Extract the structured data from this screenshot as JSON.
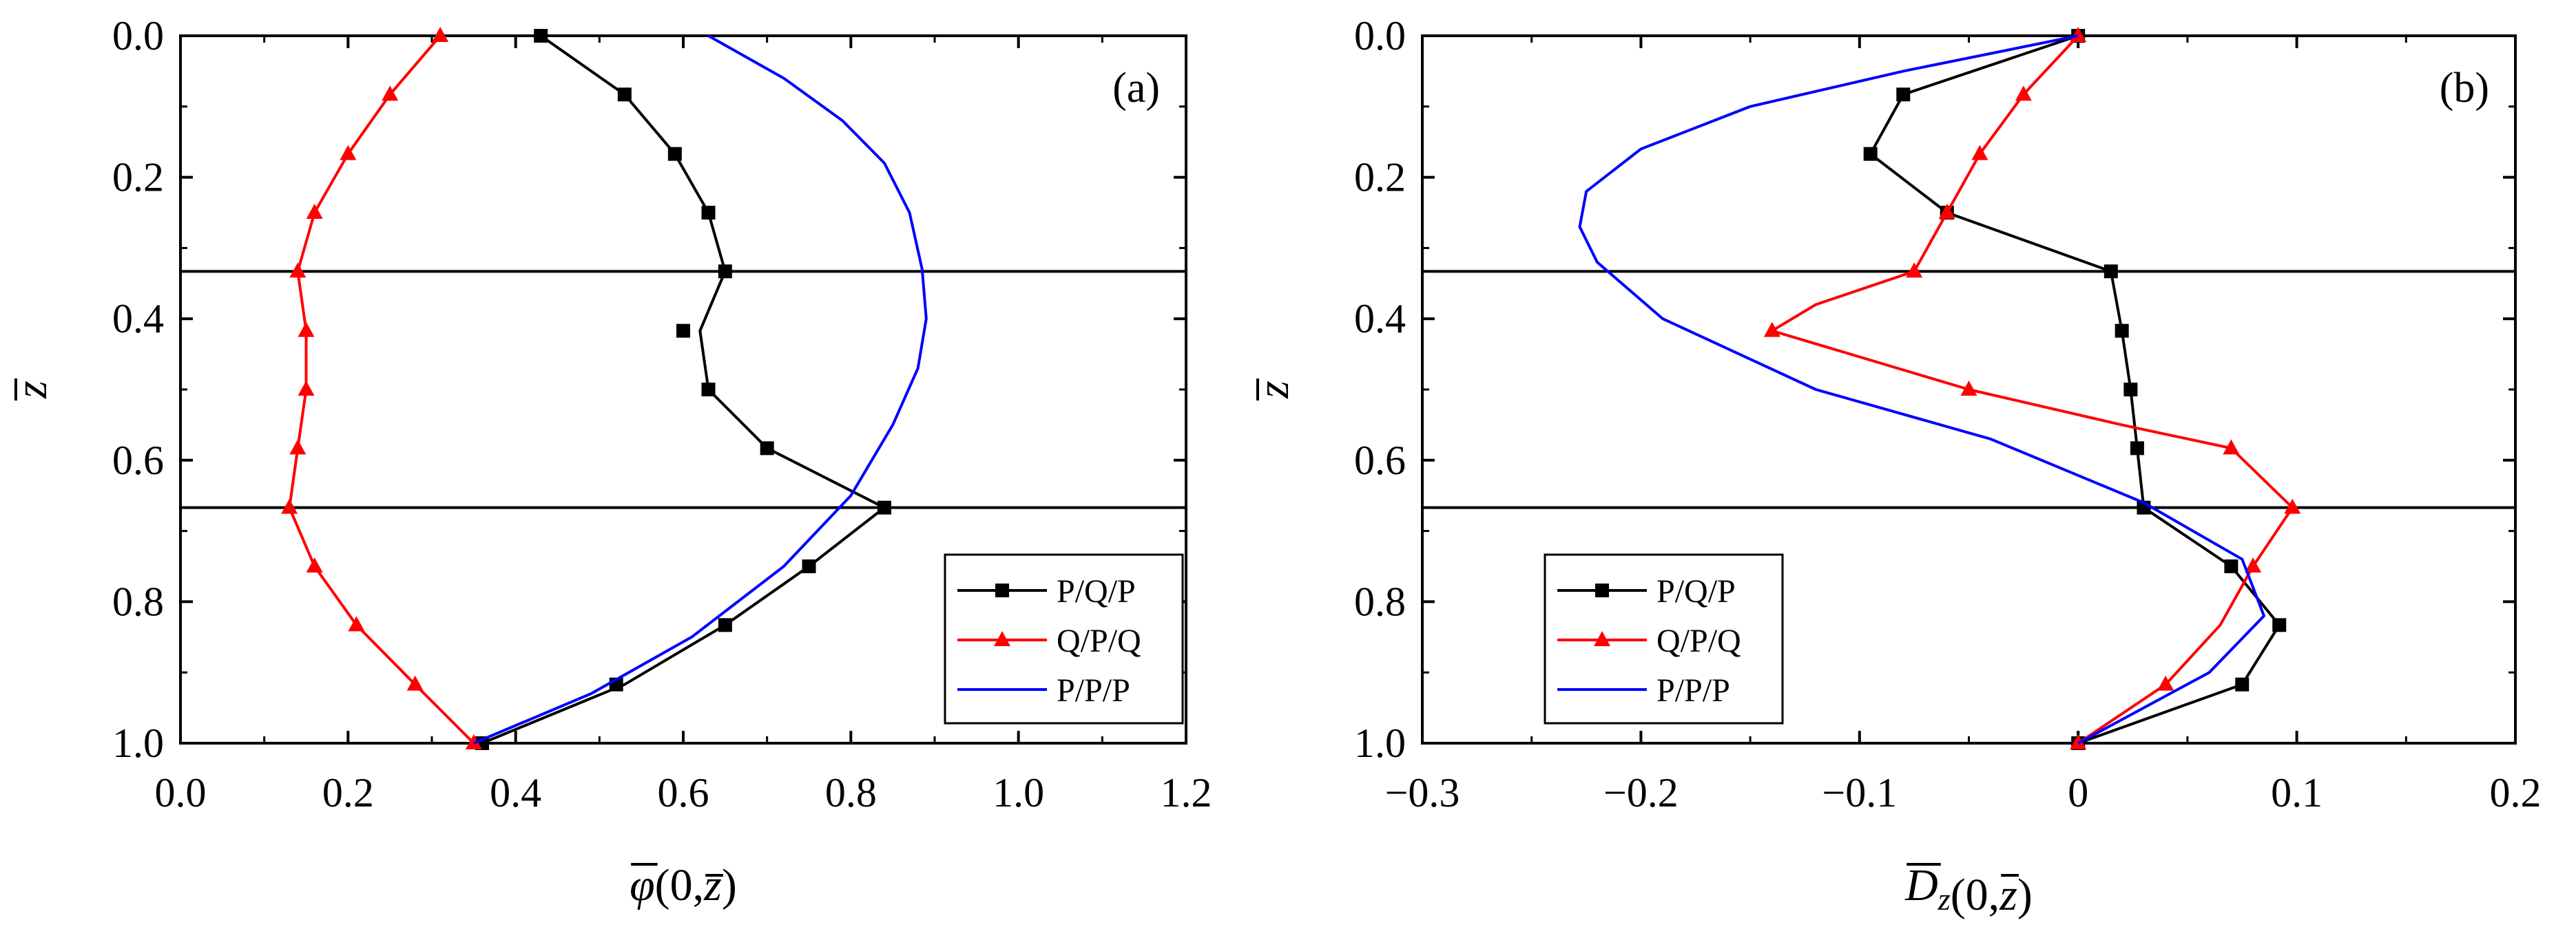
{
  "chart_data": [
    {
      "panel": "(a)",
      "type": "line",
      "xlabel_parts": {
        "main": "φ",
        "args": "(0,",
        "z": "z",
        "close": ")"
      },
      "ylabel": "z",
      "xlim": [
        0.0,
        1.2
      ],
      "ylim": [
        0.0,
        1.0
      ],
      "y_inverted": true,
      "xticks": [
        0.0,
        0.2,
        0.4,
        0.6,
        0.8,
        1.0,
        1.2
      ],
      "xtick_labels": [
        "0.0",
        "0.2",
        "0.4",
        "0.6",
        "0.8",
        "1.0",
        "1.2"
      ],
      "yticks": [
        0.0,
        0.2,
        0.4,
        0.6,
        0.8,
        1.0
      ],
      "ytick_labels": [
        "0.0",
        "0.2",
        "0.4",
        "0.6",
        "0.8",
        "1.0"
      ],
      "hlines": [
        0.333,
        0.667
      ],
      "legend": {
        "placement": "bottom-right"
      },
      "series": [
        {
          "name": "P/Q/P",
          "color": "#000000",
          "marker": "square",
          "points": [
            [
              0.43,
              0.0
            ],
            [
              0.53,
              0.083
            ],
            [
              0.59,
              0.167
            ],
            [
              0.63,
              0.25
            ],
            [
              0.65,
              0.333
            ],
            [
              0.62,
              0.417
            ],
            [
              0.63,
              0.5
            ],
            [
              0.7,
              0.583
            ],
            [
              0.84,
              0.667
            ],
            [
              0.75,
              0.75
            ],
            [
              0.65,
              0.833
            ],
            [
              0.53,
              0.917
            ],
            [
              0.36,
              1.0
            ]
          ],
          "markers": [
            [
              0.43,
              0.0
            ],
            [
              0.53,
              0.083
            ],
            [
              0.59,
              0.167
            ],
            [
              0.63,
              0.25
            ],
            [
              0.65,
              0.333
            ],
            [
              0.6,
              0.417
            ],
            [
              0.63,
              0.5
            ],
            [
              0.7,
              0.583
            ],
            [
              0.84,
              0.667
            ],
            [
              0.75,
              0.75
            ],
            [
              0.65,
              0.833
            ],
            [
              0.52,
              0.917
            ],
            [
              0.36,
              1.0
            ]
          ]
        },
        {
          "name": "Q/P/Q",
          "color": "#ff0000",
          "marker": "triangle",
          "points": [
            [
              0.31,
              0.0
            ],
            [
              0.25,
              0.083
            ],
            [
              0.2,
              0.167
            ],
            [
              0.16,
              0.25
            ],
            [
              0.14,
              0.333
            ],
            [
              0.15,
              0.417
            ],
            [
              0.15,
              0.5
            ],
            [
              0.14,
              0.583
            ],
            [
              0.13,
              0.667
            ],
            [
              0.16,
              0.75
            ],
            [
              0.21,
              0.833
            ],
            [
              0.28,
              0.917
            ],
            [
              0.35,
              1.0
            ]
          ],
          "markers": [
            [
              0.31,
              0.0
            ],
            [
              0.25,
              0.083
            ],
            [
              0.2,
              0.167
            ],
            [
              0.16,
              0.25
            ],
            [
              0.14,
              0.333
            ],
            [
              0.15,
              0.417
            ],
            [
              0.15,
              0.5
            ],
            [
              0.14,
              0.583
            ],
            [
              0.13,
              0.667
            ],
            [
              0.16,
              0.75
            ],
            [
              0.21,
              0.833
            ],
            [
              0.28,
              0.917
            ],
            [
              0.35,
              1.0
            ]
          ]
        },
        {
          "name": "P/P/P",
          "color": "#0000ff",
          "marker": "none",
          "points": [
            [
              0.63,
              0.0
            ],
            [
              0.72,
              0.06
            ],
            [
              0.79,
              0.12
            ],
            [
              0.84,
              0.18
            ],
            [
              0.87,
              0.25
            ],
            [
              0.885,
              0.33
            ],
            [
              0.89,
              0.4
            ],
            [
              0.88,
              0.47
            ],
            [
              0.85,
              0.55
            ],
            [
              0.8,
              0.65
            ],
            [
              0.72,
              0.75
            ],
            [
              0.61,
              0.85
            ],
            [
              0.49,
              0.93
            ],
            [
              0.35,
              1.0
            ]
          ],
          "markers": []
        }
      ]
    },
    {
      "panel": "(b)",
      "type": "line",
      "xlabel_parts": {
        "main": "D",
        "sub": "z",
        "args": "(0,",
        "z": "z",
        "close": ")"
      },
      "ylabel": "z",
      "xlim": [
        -0.3,
        0.2
      ],
      "ylim": [
        0.0,
        1.0
      ],
      "y_inverted": true,
      "xticks": [
        -0.3,
        -0.2,
        -0.1,
        0.0,
        0.1,
        0.2
      ],
      "xtick_labels": [
        "−0.3",
        "−0.2",
        "−0.1",
        "0",
        "0.1",
        "0.2"
      ],
      "yticks": [
        0.0,
        0.2,
        0.4,
        0.6,
        0.8,
        1.0
      ],
      "ytick_labels": [
        "0.0",
        "0.2",
        "0.4",
        "0.6",
        "0.8",
        "1.0"
      ],
      "hlines": [
        0.333,
        0.667
      ],
      "legend": {
        "placement": "bottom-left"
      },
      "series": [
        {
          "name": "P/Q/P",
          "color": "#000000",
          "marker": "square",
          "points": [
            [
              0.0,
              0.0
            ],
            [
              -0.08,
              0.083
            ],
            [
              -0.095,
              0.167
            ],
            [
              -0.06,
              0.25
            ],
            [
              0.015,
              0.333
            ],
            [
              0.02,
              0.417
            ],
            [
              0.024,
              0.5
            ],
            [
              0.027,
              0.583
            ],
            [
              0.03,
              0.667
            ],
            [
              0.07,
              0.75
            ],
            [
              0.092,
              0.833
            ],
            [
              0.075,
              0.917
            ],
            [
              0.0,
              1.0
            ]
          ],
          "markers": [
            [
              0.0,
              0.0
            ],
            [
              -0.08,
              0.083
            ],
            [
              -0.095,
              0.167
            ],
            [
              -0.06,
              0.25
            ],
            [
              0.015,
              0.333
            ],
            [
              0.02,
              0.417
            ],
            [
              0.024,
              0.5
            ],
            [
              0.027,
              0.583
            ],
            [
              0.03,
              0.667
            ],
            [
              0.07,
              0.75
            ],
            [
              0.092,
              0.833
            ],
            [
              0.075,
              0.917
            ],
            [
              0.0,
              1.0
            ]
          ]
        },
        {
          "name": "Q/P/Q",
          "color": "#ff0000",
          "marker": "triangle",
          "points": [
            [
              0.0,
              0.0
            ],
            [
              -0.025,
              0.083
            ],
            [
              -0.045,
              0.167
            ],
            [
              -0.06,
              0.25
            ],
            [
              -0.075,
              0.333
            ],
            [
              -0.12,
              0.38
            ],
            [
              -0.14,
              0.417
            ],
            [
              -0.05,
              0.5
            ],
            [
              0.02,
              0.55
            ],
            [
              0.07,
              0.583
            ],
            [
              0.098,
              0.667
            ],
            [
              0.08,
              0.75
            ],
            [
              0.065,
              0.833
            ],
            [
              0.04,
              0.917
            ],
            [
              0.0,
              1.0
            ]
          ],
          "markers": [
            [
              0.0,
              0.0
            ],
            [
              -0.025,
              0.083
            ],
            [
              -0.045,
              0.167
            ],
            [
              -0.06,
              0.25
            ],
            [
              -0.075,
              0.333
            ],
            [
              -0.14,
              0.417
            ],
            [
              -0.05,
              0.5
            ],
            [
              0.07,
              0.583
            ],
            [
              0.098,
              0.667
            ],
            [
              0.08,
              0.75
            ],
            [
              0.04,
              0.917
            ],
            [
              0.0,
              1.0
            ]
          ]
        },
        {
          "name": "P/P/P",
          "color": "#0000ff",
          "marker": "none",
          "points": [
            [
              0.0,
              0.0
            ],
            [
              -0.08,
              0.05
            ],
            [
              -0.15,
              0.1
            ],
            [
              -0.2,
              0.16
            ],
            [
              -0.225,
              0.22
            ],
            [
              -0.228,
              0.27
            ],
            [
              -0.22,
              0.32
            ],
            [
              -0.19,
              0.4
            ],
            [
              -0.12,
              0.5
            ],
            [
              -0.04,
              0.57
            ],
            [
              0.03,
              0.66
            ],
            [
              0.075,
              0.74
            ],
            [
              0.085,
              0.82
            ],
            [
              0.06,
              0.9
            ],
            [
              0.0,
              1.0
            ]
          ],
          "markers": []
        }
      ]
    }
  ]
}
